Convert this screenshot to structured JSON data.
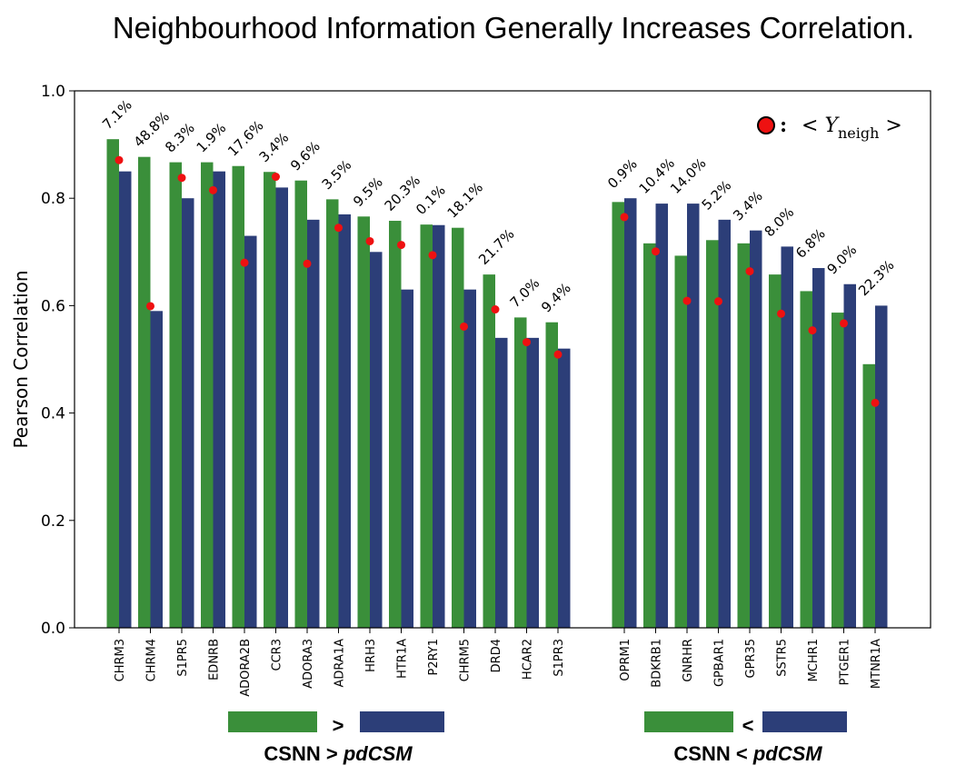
{
  "chart_data": {
    "type": "bar",
    "title": "Neighbourhood Information Generally Increases Correlation.",
    "ylabel": "Pearson Correlation",
    "xlabel": "",
    "ylim": [
      0.0,
      1.0
    ],
    "yticks": [
      "0.0",
      "0.2",
      "0.4",
      "0.6",
      "0.8",
      "1.0"
    ],
    "grid": false,
    "colors": {
      "csnn": "#3a8f3a",
      "pdcsm": "#2c3e78",
      "marker": "#ee1111"
    },
    "legend": {
      "marker_label": "<",
      "marker_var": "Y",
      "marker_sub": "neigh",
      "marker_close": ">",
      "colon": ":",
      "placement": "top-right"
    },
    "groups": [
      {
        "caption_a": "CSNN > ",
        "caption_b": "pdCSM",
        "symbol": ">",
        "categories": [
          "CHRM3",
          "CHRM4",
          "S1PR5",
          "EDNRB",
          "ADORA2B",
          "CCR3",
          "ADORA3",
          "ADRA1A",
          "HRH3",
          "HTR1A",
          "P2RY1",
          "CHRM5",
          "DRD4",
          "HCAR2",
          "S1PR3"
        ],
        "series": [
          {
            "key": "csnn",
            "values": [
              0.91,
              0.877,
              0.867,
              0.867,
              0.86,
              0.849,
              0.833,
              0.798,
              0.766,
              0.758,
              0.751,
              0.745,
              0.658,
              0.578,
              0.569
            ]
          },
          {
            "key": "pdcsm",
            "values": [
              0.85,
              0.59,
              0.8,
              0.85,
              0.73,
              0.82,
              0.76,
              0.77,
              0.7,
              0.63,
              0.75,
              0.63,
              0.54,
              0.54,
              0.52
            ]
          },
          {
            "key": "neigh",
            "values": [
              0.871,
              0.599,
              0.838,
              0.815,
              0.68,
              0.84,
              0.678,
              0.745,
              0.72,
              0.713,
              0.694,
              0.561,
              0.593,
              0.532,
              0.509
            ]
          }
        ],
        "pct_labels": [
          "7.1%",
          "48.8%",
          "8.3%",
          "1.9%",
          "17.6%",
          "3.4%",
          "9.6%",
          "3.5%",
          "9.5%",
          "20.3%",
          "0.1%",
          "18.1%",
          "21.7%",
          "7.0%",
          "9.4%"
        ]
      },
      {
        "caption_a": "CSNN < ",
        "caption_b": "pdCSM",
        "symbol": "<",
        "categories": [
          "OPRM1",
          "BDKRB1",
          "GNRHR",
          "GPBAR1",
          "GPR35",
          "SSTR5",
          "MCHR1",
          "PTGER1",
          "MTNR1A"
        ],
        "series": [
          {
            "key": "csnn",
            "values": [
              0.793,
              0.716,
              0.693,
              0.722,
              0.716,
              0.658,
              0.627,
              0.587,
              0.491
            ]
          },
          {
            "key": "pdcsm",
            "values": [
              0.8,
              0.79,
              0.79,
              0.76,
              0.74,
              0.71,
              0.67,
              0.64,
              0.6
            ]
          },
          {
            "key": "neigh",
            "values": [
              0.765,
              0.701,
              0.609,
              0.608,
              0.664,
              0.585,
              0.554,
              0.567,
              0.419
            ]
          }
        ],
        "pct_labels": [
          "0.9%",
          "10.4%",
          "14.0%",
          "5.2%",
          "3.4%",
          "8.0%",
          "6.8%",
          "9.0%",
          "22.3%"
        ]
      }
    ]
  }
}
